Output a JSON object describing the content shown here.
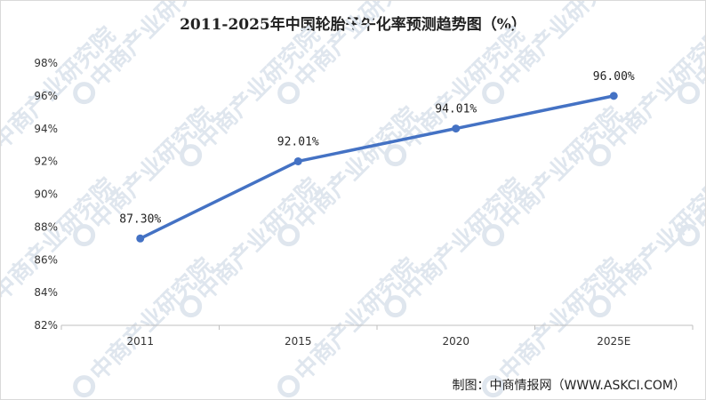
{
  "title": "2011-2025年中国轮胎子午化率预测趋势图（%）",
  "source": "制图：中商情报网（WWW.ASKCI.COM）",
  "watermark": "中商产业研究院",
  "colors": {
    "line": "#4472c4",
    "grid": "#d9d9d9",
    "watermark": "#dfe6ee"
  },
  "chart_data": {
    "type": "line",
    "title": "2011-2025年中国轮胎子午化率预测趋势图（%）",
    "categories": [
      "2011",
      "2015",
      "2020",
      "2025E"
    ],
    "series": [
      {
        "values": [
          87.3,
          92.01,
          94.01,
          96.0
        ]
      }
    ],
    "data_labels": [
      "87.30%",
      "92.01%",
      "94.01%",
      "96.00%"
    ],
    "yticks": [
      "82%",
      "84%",
      "86%",
      "88%",
      "90%",
      "92%",
      "94%",
      "96%",
      "98%"
    ],
    "ylim": [
      82,
      98
    ],
    "ystep": 2,
    "grid": false,
    "xlabel": "",
    "ylabel": ""
  }
}
